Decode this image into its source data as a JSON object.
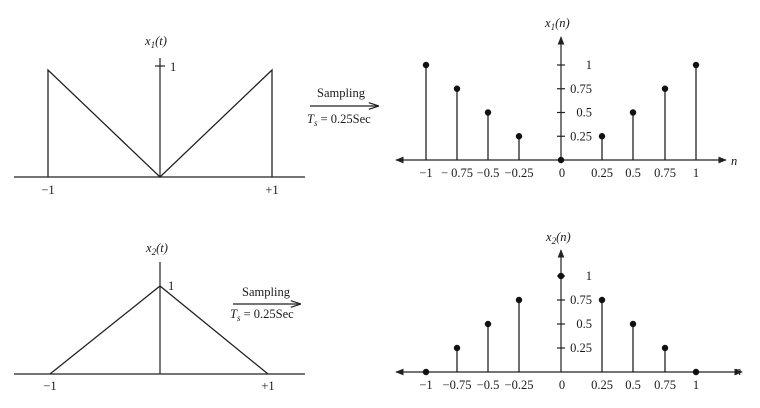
{
  "arrows": {
    "top": {
      "line1": "Sampling",
      "ts_main": "T",
      "ts_sub": "s",
      "ts_rest": " = 0.25Sec"
    },
    "bottom": {
      "line1": "Sampling",
      "ts_main": "T",
      "ts_sub": "s",
      "ts_rest": " = 0.25Sec"
    }
  },
  "cont1": {
    "ylabel_main": "x",
    "ylabel_sub": "1",
    "ylabel_arg": "(t)",
    "peak_label": "1",
    "xticks": [
      "−1",
      "+1"
    ]
  },
  "cont2": {
    "ylabel_main": "x",
    "ylabel_sub": "2",
    "ylabel_arg": "(t)",
    "peak_label": "1",
    "xticks": [
      "−1",
      "+1"
    ]
  },
  "disc1": {
    "ylabel_main": "x",
    "ylabel_sub": "1",
    "ylabel_arg": "(n)",
    "xaxis_label": "n",
    "xtick_labels": [
      "−1",
      "− 0.75",
      "−0.5",
      "−0.25",
      "0",
      "0.25",
      "0.5",
      "0.75",
      "1"
    ],
    "ytick_labels": [
      "0.25",
      "0.5",
      "0.75",
      "1"
    ]
  },
  "disc2": {
    "ylabel_main": "x",
    "ylabel_sub": "2",
    "ylabel_arg": "(n)",
    "xaxis_label": "n",
    "xtick_labels": [
      "−1",
      "−0.75",
      "−0.5",
      "−0.25",
      "0",
      "0.25",
      "0.5",
      "0.75",
      "1"
    ],
    "ytick_labels": [
      "0.25",
      "0.5",
      "0.75",
      "1"
    ]
  },
  "chart_data": [
    {
      "type": "line",
      "name_ref": "x1(t)",
      "x": [
        -1,
        -1,
        0,
        1,
        1
      ],
      "y": [
        0,
        1,
        0,
        1,
        0
      ],
      "xlim": [
        -1,
        1
      ],
      "ylim": [
        0,
        1
      ]
    },
    {
      "type": "line",
      "name_ref": "x2(t)",
      "x": [
        -1,
        0,
        1
      ],
      "y": [
        0,
        1,
        0
      ],
      "xlim": [
        -1,
        1
      ],
      "ylim": [
        0,
        1
      ]
    },
    {
      "type": "stem",
      "name_ref": "x1(n)",
      "x": [
        -1,
        -0.75,
        -0.5,
        -0.25,
        0,
        0.25,
        0.5,
        0.75,
        1
      ],
      "y": [
        1,
        0.75,
        0.5,
        0.25,
        0,
        0.25,
        0.5,
        0.75,
        1
      ],
      "ylim": [
        0,
        1
      ]
    },
    {
      "type": "stem",
      "name_ref": "x2(n)",
      "x": [
        -1,
        -0.75,
        -0.5,
        -0.25,
        0,
        0.25,
        0.5,
        0.75,
        1
      ],
      "y": [
        0,
        0.25,
        0.5,
        0.75,
        1,
        0.75,
        0.5,
        0.25,
        0
      ],
      "ylim": [
        0,
        1
      ]
    }
  ]
}
